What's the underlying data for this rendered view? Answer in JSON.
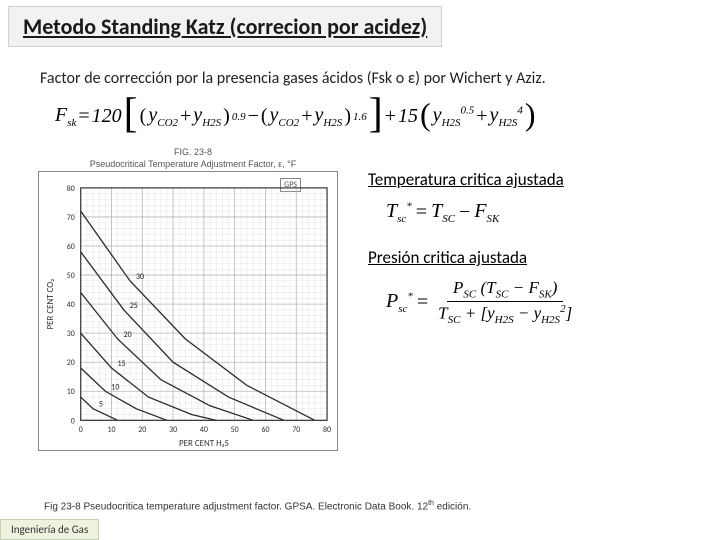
{
  "title": "Metodo Standing Katz (correcion por acidez)",
  "intro": "Factor de corrección por la presencia gases ácidos (Fsk o ε)  por Wichert  y Aziz.",
  "formula": {
    "lhs": "F",
    "lhs_sub": "sk",
    "coef1": "120",
    "coef2": "15",
    "t1a": "y",
    "t1a_sub": "CO2",
    "t1b": "y",
    "t1b_sub": "H2S",
    "exp1": "0.9",
    "t2a": "y",
    "t2a_sub": "CO2",
    "t2b": "y",
    "t2b_sub": "H2S",
    "exp2": "1.6",
    "t3a": "y",
    "t3a_sub": "H2S",
    "exp3a": "0.5",
    "t3b": "y",
    "t3b_sub": "H2S",
    "exp3b": "4"
  },
  "chart": {
    "caption_top": "FIG. 23-8",
    "caption_sub": "Pseudocritical Temperature Adjustment Factor, ε, °F",
    "badge": "GPS",
    "x_label": "PER CENT  H₂S",
    "y_label": "PER CENT CO₂",
    "x_ticks": [
      0,
      10,
      20,
      30,
      40,
      50,
      60,
      70,
      80
    ],
    "y_ticks": [
      0,
      10,
      20,
      30,
      40,
      50,
      60,
      70,
      80
    ],
    "contour_labels": [
      "5",
      "10",
      "15",
      "20",
      "25",
      "30"
    ],
    "grid_color": "#b8b8b8",
    "minor_grid_color": "#dcdcdc",
    "line_color": "#2a2a2a",
    "background": "#ffffff",
    "tick_fontsize": 8
  },
  "section1": {
    "label": "Temperatura critica ajustada"
  },
  "eq1": {
    "l": "T",
    "lsub": "sc",
    "lsup": "*",
    "r1": "T",
    "r1sub": "SC",
    "r2": "F",
    "r2sub": "SK"
  },
  "section2": {
    "label": "Presión critica ajustada"
  },
  "eq2": {
    "l": "P",
    "lsub": "sc",
    "lsup": "*",
    "num1": "P",
    "num1sub": "SC",
    "num2": "T",
    "num2sub": "SC",
    "num3": "F",
    "num3sub": "SK",
    "den1": "T",
    "den1sub": "SC",
    "den2": "y",
    "den2sub": "H2S",
    "den3": "y",
    "den3sub": "H2S",
    "den3sup": "2"
  },
  "cite": {
    "text1": "Fig 23-8 Pseudocritica temperature adjustment factor.  GPSA. Electronic Data Book. 12",
    "sup": "th",
    "text2": " edición."
  },
  "footer": "Ingeniería de Gas"
}
